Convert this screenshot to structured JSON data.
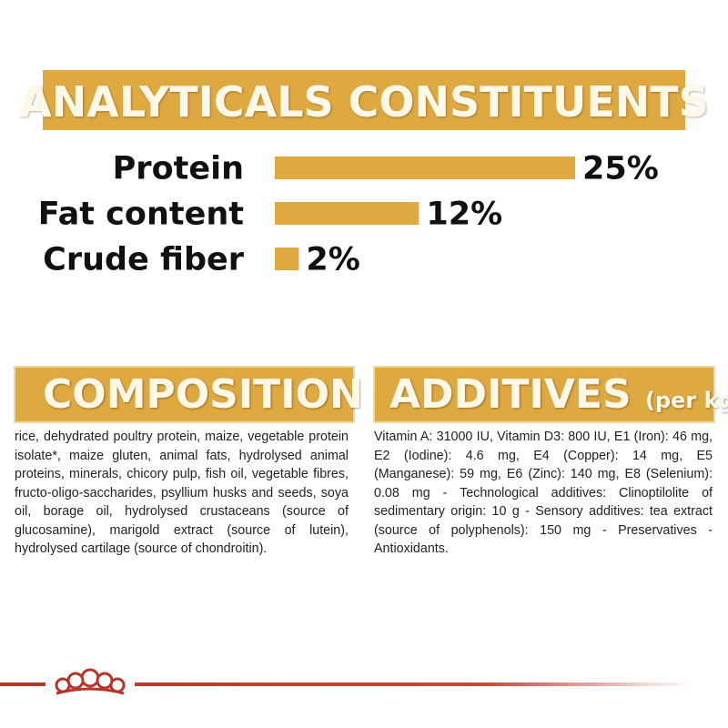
{
  "header": {
    "title": "ANALYTICALS CONSTITUENTS"
  },
  "chart_data": {
    "type": "bar",
    "orientation": "horizontal",
    "color": "#dfa941",
    "categories": [
      "Protein",
      "Fat content",
      "Crude fiber"
    ],
    "values": [
      25,
      12,
      2
    ],
    "value_labels": [
      "25%",
      "12%",
      "2%"
    ]
  },
  "composition": {
    "title": "COMPOSITION",
    "text": "rice, dehydrated poultry protein, maize, vegetable protein isolate*, maize gluten, animal fats, hydrolysed animal proteins, minerals, chicory pulp, fish oil, vegetable fibres, fructo-oligo-saccharides, psyllium husks and seeds, soya oil, borage oil, hydrolysed crustaceans (source of glucosamine), marigold extract (source of lutein), hydrolysed cartilage (source of chondroitin)."
  },
  "additives": {
    "title": "ADDITIVES",
    "unit": "(per kg)",
    "text": "Vitamin A: 31000 IU, Vitamin D3: 800 IU, E1 (Iron): 46 mg, E2 (Iodine): 4.6 mg, E4 (Copper): 14 mg, E5 (Manganese): 59 mg, E6 (Zinc): 140 mg, E8 (Selenium): 0.08 mg - Technological additives: Clinoptilolite of sedimentary origin: 10 g - Sensory additives: tea extract (source of polyphenols): 150 mg - Preservatives - Antioxidants."
  }
}
